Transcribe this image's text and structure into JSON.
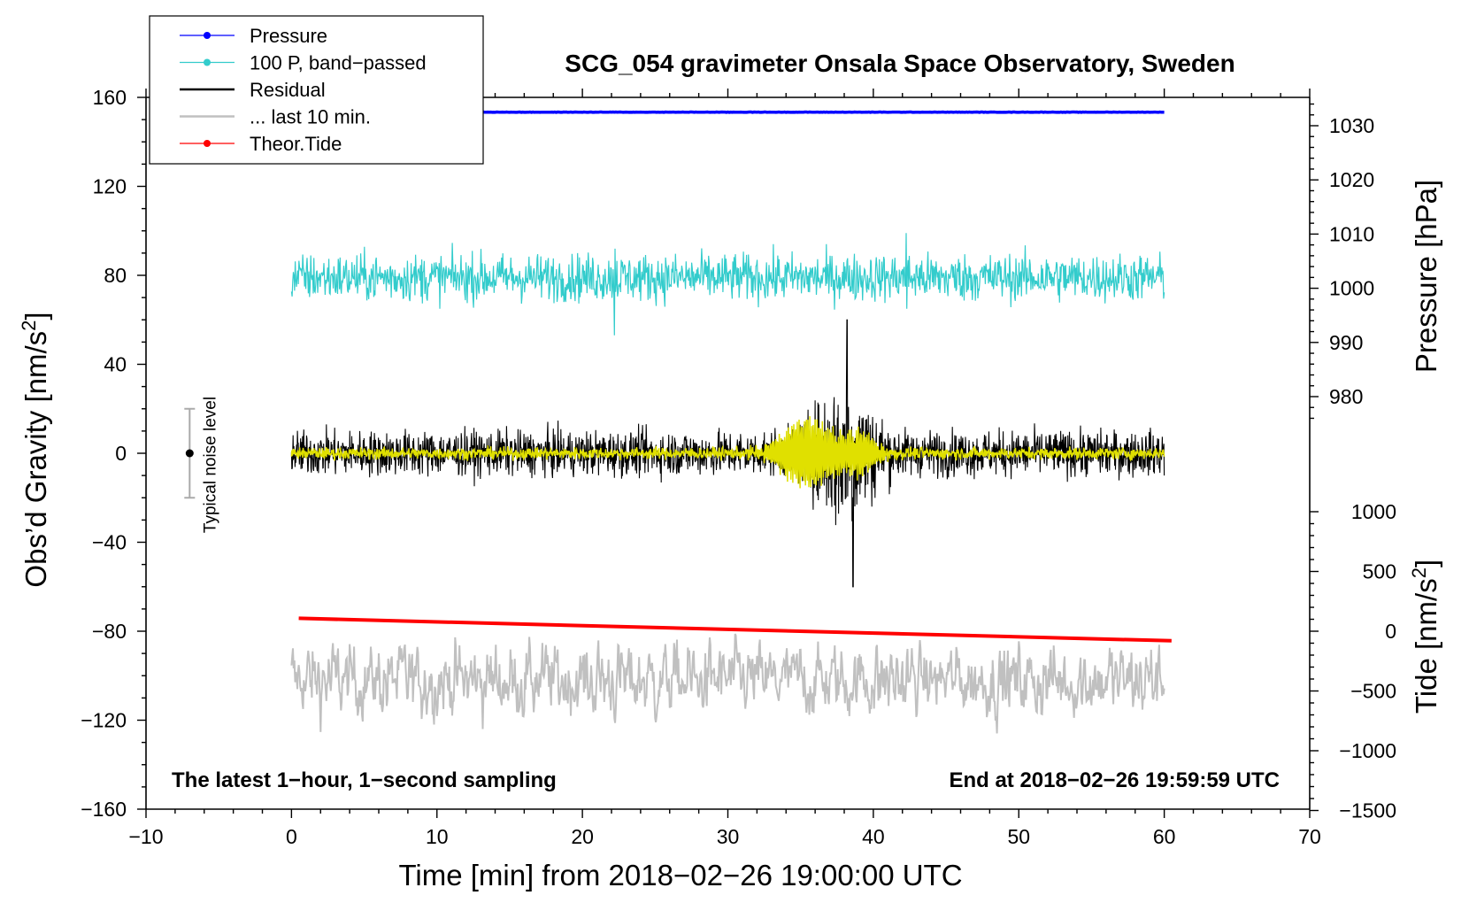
{
  "chart_data": {
    "type": "line",
    "title": "SCG_054 gravimeter Onsala Space Observatory, Sweden",
    "xlabel": "Time [min] from 2018−02−26 19:00:00 UTC",
    "ylabel_left": "Obs’d Gravity [nm/s",
    "ylabel_left_sup": "2",
    "ylabel_left_end": "]",
    "ylabel_right_pressure": "Pressure [hPa]",
    "ylabel_right_tide": "Tide [nm/s",
    "ylabel_right_tide_sup": "2",
    "ylabel_right_tide_end": "]",
    "xlim": [
      -10,
      70
    ],
    "ylim_left": [
      -160,
      160
    ],
    "pressure_axis": [
      975,
      1034
    ],
    "tide_axis_range": [
      -1500,
      1500
    ],
    "x_ticks": [
      {
        "v": -10,
        "label": "−10"
      },
      {
        "v": 0,
        "label": "0"
      },
      {
        "v": 10,
        "label": "10"
      },
      {
        "v": 20,
        "label": "20"
      },
      {
        "v": 30,
        "label": "30"
      },
      {
        "v": 40,
        "label": "40"
      },
      {
        "v": 50,
        "label": "50"
      },
      {
        "v": 60,
        "label": "60"
      },
      {
        "v": 70,
        "label": "70"
      }
    ],
    "y_ticks_left": [
      {
        "v": 160,
        "label": "160"
      },
      {
        "v": 120,
        "label": "120"
      },
      {
        "v": 80,
        "label": "80"
      },
      {
        "v": 40,
        "label": "40"
      },
      {
        "v": 0,
        "label": "0"
      },
      {
        "v": -40,
        "label": "−40"
      },
      {
        "v": -80,
        "label": "−80"
      },
      {
        "v": -120,
        "label": "−120"
      },
      {
        "v": -160,
        "label": "−160"
      }
    ],
    "pressure_ticks": [
      {
        "v": 1030,
        "label": "1030"
      },
      {
        "v": 1020,
        "label": "1020"
      },
      {
        "v": 1010,
        "label": "1010"
      },
      {
        "v": 1000,
        "label": "1000"
      },
      {
        "v": 990,
        "label": "990"
      },
      {
        "v": 980,
        "label": "980"
      }
    ],
    "tide_ticks": [
      {
        "v": 1000,
        "label": "1000"
      },
      {
        "v": 500,
        "label": "500"
      },
      {
        "v": 0,
        "label": "0"
      },
      {
        "v": -500,
        "label": "−500"
      },
      {
        "v": -1000,
        "label": "−1000"
      },
      {
        "v": -1500,
        "label": "−1500"
      }
    ],
    "series": [
      {
        "name": "Pressure",
        "color": "#0000ff",
        "axis": "pressure",
        "x_range": [
          0,
          60
        ],
        "level": 1032.5
      },
      {
        "name": "100 P, band−passed",
        "color": "#33cccc",
        "axis": "left",
        "x_range": [
          0,
          60
        ],
        "center": 79,
        "amplitude": 6
      },
      {
        "name": "Residual",
        "color": "#000000",
        "axis": "left",
        "x_range": [
          0,
          60
        ],
        "center": 0,
        "amplitude": 11,
        "burst_center_min": 38,
        "burst_peak": 60
      },
      {
        "name": "... last 10 min.",
        "color": "#c0c0c0",
        "axis": "left",
        "x_range": [
          0,
          60
        ],
        "center": -102,
        "amplitude": 12
      },
      {
        "name": "Theor.Tide",
        "color": "#ff0000",
        "axis": "tide",
        "x_range": [
          0.5,
          60.5
        ],
        "values": [
          108,
          -80
        ]
      },
      {
        "name": "filtered residual",
        "color": "#e0e000",
        "axis": "left",
        "x_range": [
          0,
          60
        ],
        "center": 0,
        "amplitude": 3
      }
    ],
    "noise_bar": {
      "x": -7,
      "center": 0,
      "half_range": 20,
      "label": "Typical noise level"
    },
    "annotations": {
      "bottom_left": "The latest 1−hour, 1−second sampling",
      "bottom_right": "End at 2018−02−26 19:59:59 UTC"
    },
    "legend": [
      {
        "label": "Pressure",
        "color": "#0000ff",
        "marker": true,
        "style": "thin"
      },
      {
        "label": "100 P, band−passed",
        "color": "#33cccc",
        "marker": true,
        "style": "thin"
      },
      {
        "label": "Residual",
        "color": "#000000",
        "marker": false,
        "style": "thick"
      },
      {
        "label": "... last 10 min.",
        "color": "#c0c0c0",
        "marker": false,
        "style": "thick"
      },
      {
        "label": "Theor.Tide",
        "color": "#ff0000",
        "marker": true,
        "style": "thin"
      }
    ]
  }
}
